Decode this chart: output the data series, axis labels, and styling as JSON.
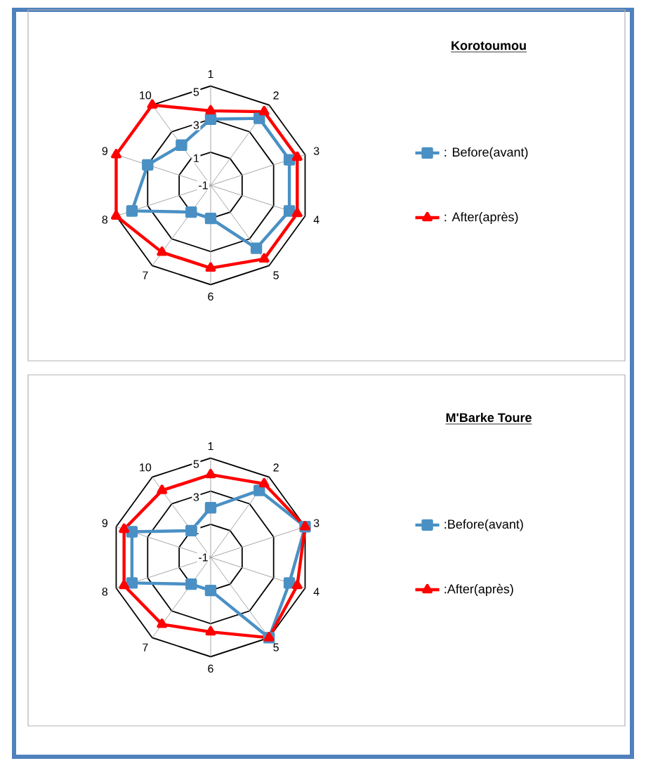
{
  "chart_data": [
    {
      "type": "radar",
      "title": "Korotoumou",
      "categories": [
        "1",
        "2",
        "3",
        "4",
        "5",
        "6",
        "7",
        "8",
        "9",
        "10"
      ],
      "ylim": [
        -1,
        5
      ],
      "yticks": [
        -1,
        1,
        3,
        5
      ],
      "grid": true,
      "legend": "right",
      "line_style": "solid",
      "series": [
        {
          "name": ": Before(avant)",
          "color": "#4a90c4",
          "marker": "square",
          "values": [
            3,
            4,
            4,
            4,
            3.7,
            1,
            1,
            4,
            3,
            2
          ]
        },
        {
          "name": ": After(après)",
          "color": "#ff0000",
          "marker": "triangle",
          "values": [
            3.5,
            4.5,
            4.5,
            4.5,
            4.5,
            4,
            4,
            5,
            5,
            5
          ]
        }
      ]
    },
    {
      "type": "radar",
      "title": "M'Barke Toure",
      "categories": [
        "1",
        "2",
        "3",
        "4",
        "5",
        "6",
        "7",
        "8",
        "9",
        "10"
      ],
      "ylim": [
        -1,
        5
      ],
      "yticks": [
        -1,
        1,
        3,
        5
      ],
      "grid": true,
      "legend": "right",
      "line_style": "solid",
      "series": [
        {
          "name": ":Before(avant)",
          "color": "#4a90c4",
          "marker": "square",
          "values": [
            2,
            4,
            5,
            4,
            5,
            1,
            1,
            4,
            4,
            1
          ]
        },
        {
          "name": ":After(après)",
          "color": "#ff0000",
          "marker": "triangle",
          "values": [
            4,
            4.5,
            5,
            4.5,
            5,
            3.5,
            4,
            4.5,
            4.5,
            4
          ]
        }
      ]
    }
  ]
}
